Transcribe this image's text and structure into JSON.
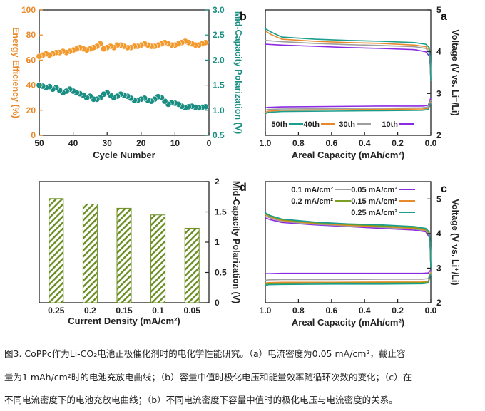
{
  "chart_data": [
    {
      "panel": "a",
      "type": "line",
      "xlabel": "Areal Capacity (mAh/cm²)",
      "ylabel": "Voltage (V vs. Li⁺/Li)",
      "xlim": [
        0,
        1.0
      ],
      "ylim": [
        2,
        5
      ],
      "xticks": [
        "0.0",
        "0.2",
        "0.4",
        "0.6",
        "0.8",
        "1.0"
      ],
      "yticks": [
        "2",
        "3",
        "4",
        "5"
      ],
      "legend_position": "bottom",
      "series": [
        {
          "name": "10th",
          "color": "#8a2be2",
          "charge": {
            "x": [
              0,
              0.004,
              0.01,
              0.03,
              0.1,
              0.3,
              0.5,
              0.7,
              0.9,
              1.0
            ],
            "y": [
              3.3,
              3.7,
              3.9,
              4.0,
              4.05,
              4.08,
              4.1,
              4.13,
              4.16,
              4.18
            ]
          },
          "discharge": {
            "x": [
              0,
              0.015,
              0.05,
              0.3,
              0.6,
              0.9,
              0.98,
              1.0
            ],
            "y": [
              2.9,
              2.72,
              2.7,
              2.7,
              2.69,
              2.68,
              2.67,
              2.66
            ]
          }
        },
        {
          "name": "30th",
          "color": "#9e9e9e",
          "charge": {
            "x": [
              0,
              0.004,
              0.01,
              0.03,
              0.1,
              0.3,
              0.5,
              0.7,
              0.9,
              1.0
            ],
            "y": [
              3.3,
              3.8,
              4.0,
              4.08,
              4.12,
              4.15,
              4.17,
              4.2,
              4.24,
              4.27
            ]
          },
          "discharge": {
            "x": [
              0,
              0.015,
              0.05,
              0.3,
              0.6,
              0.9,
              0.98,
              1.0
            ],
            "y": [
              2.85,
              2.68,
              2.66,
              2.65,
              2.64,
              2.63,
              2.62,
              2.6
            ]
          }
        },
        {
          "name": "40th",
          "color": "#e8892a",
          "charge": {
            "x": [
              0,
              0.004,
              0.01,
              0.03,
              0.1,
              0.3,
              0.5,
              0.7,
              0.9,
              0.97,
              1.0
            ],
            "y": [
              3.3,
              3.85,
              4.05,
              4.12,
              4.16,
              4.2,
              4.22,
              4.25,
              4.3,
              4.42,
              4.5
            ]
          },
          "discharge": {
            "x": [
              0,
              0.015,
              0.05,
              0.3,
              0.6,
              0.9,
              0.98,
              1.0
            ],
            "y": [
              2.8,
              2.65,
              2.63,
              2.62,
              2.61,
              2.6,
              2.58,
              2.55
            ]
          }
        },
        {
          "name": "50th",
          "color": "#1a9e8f",
          "charge": {
            "x": [
              0,
              0.004,
              0.01,
              0.03,
              0.1,
              0.3,
              0.5,
              0.7,
              0.9,
              0.97,
              1.0
            ],
            "y": [
              3.3,
              3.9,
              4.1,
              4.18,
              4.22,
              4.25,
              4.27,
              4.3,
              4.35,
              4.48,
              4.55
            ]
          },
          "discharge": {
            "x": [
              0,
              0.015,
              0.05,
              0.3,
              0.6,
              0.9,
              0.98,
              1.0
            ],
            "y": [
              2.78,
              2.62,
              2.6,
              2.59,
              2.58,
              2.57,
              2.55,
              2.52
            ]
          }
        }
      ]
    },
    {
      "panel": "b",
      "type": "scatter",
      "xlabel": "Cycle Number",
      "ylabel_left": "Energy Efficiency (%)",
      "ylabel_right": "Mid-Capacity Polarization (V)",
      "xlim": [
        0,
        50
      ],
      "ylim_left": [
        0,
        100
      ],
      "ylim_right": [
        0.5,
        3.0
      ],
      "xticks": [
        "0",
        "10",
        "20",
        "30",
        "40",
        "50"
      ],
      "yticks_left": [
        "0",
        "20",
        "40",
        "60",
        "80",
        "100"
      ],
      "yticks_right": [
        "0.5",
        "1.0",
        "1.5",
        "2.0",
        "2.5",
        "3.0"
      ],
      "series": [
        {
          "name": "Energy Efficiency",
          "axis": "left",
          "color": "#f39a2e",
          "x": [
            1,
            2,
            3,
            4,
            5,
            6,
            7,
            8,
            9,
            10,
            11,
            12,
            13,
            14,
            15,
            16,
            17,
            18,
            19,
            20,
            21,
            22,
            23,
            24,
            25,
            26,
            27,
            28,
            29,
            30,
            31,
            32,
            33,
            34,
            35,
            36,
            37,
            38,
            39,
            40,
            41,
            42,
            43,
            44,
            45,
            46,
            47,
            48,
            49,
            50
          ],
          "y": [
            74,
            73,
            72,
            72,
            73,
            74,
            75,
            74,
            73,
            72,
            72,
            73,
            74,
            73,
            72,
            71,
            71,
            72,
            73,
            72,
            71,
            71,
            70,
            70,
            71,
            72,
            72,
            70,
            71,
            70,
            69,
            73,
            71,
            70,
            69,
            68,
            69,
            70,
            69,
            68,
            67,
            66,
            67,
            66,
            66,
            65,
            64,
            65,
            64,
            63
          ]
        },
        {
          "name": "Mid-Capacity Polarization",
          "axis": "right",
          "color": "#1a8e82",
          "x": [
            1,
            2,
            3,
            4,
            5,
            6,
            7,
            8,
            9,
            10,
            11,
            12,
            13,
            14,
            15,
            16,
            17,
            18,
            19,
            20,
            21,
            22,
            23,
            24,
            25,
            26,
            27,
            28,
            29,
            30,
            31,
            32,
            33,
            34,
            35,
            36,
            37,
            38,
            39,
            40,
            41,
            42,
            43,
            44,
            45,
            46,
            47,
            48,
            49,
            50
          ],
          "y": [
            1.07,
            1.06,
            1.05,
            1.06,
            1.08,
            1.07,
            1.05,
            1.08,
            1.12,
            1.14,
            1.15,
            1.12,
            1.18,
            1.25,
            1.27,
            1.22,
            1.18,
            1.2,
            1.24,
            1.22,
            1.2,
            1.2,
            1.24,
            1.28,
            1.3,
            1.32,
            1.28,
            1.25,
            1.3,
            1.35,
            1.32,
            1.25,
            1.22,
            1.22,
            1.28,
            1.25,
            1.3,
            1.33,
            1.35,
            1.38,
            1.42,
            1.38,
            1.35,
            1.4,
            1.45,
            1.42,
            1.47,
            1.45,
            1.48,
            1.5
          ]
        }
      ]
    },
    {
      "panel": "c",
      "type": "line",
      "xlabel": "Areal Capacity (mAh/cm²)",
      "ylabel": "Voltage (V vs. Li⁺/Li)",
      "xlim": [
        0,
        1.0
      ],
      "ylim": [
        2,
        5.5
      ],
      "xticks": [
        "0.0",
        "0.2",
        "0.4",
        "0.6",
        "0.8",
        "1.0"
      ],
      "yticks": [
        "2",
        "3",
        "4",
        "5"
      ],
      "legend_position": "top-right",
      "series": [
        {
          "name": "0.05 mA/cm²",
          "color": "#8a2be2",
          "charge": {
            "x": [
              0,
              0.004,
              0.01,
              0.03,
              0.1,
              0.3,
              0.5,
              0.7,
              0.9,
              0.97,
              1.0
            ],
            "y": [
              3.0,
              3.6,
              3.9,
              4.05,
              4.1,
              4.15,
              4.2,
              4.25,
              4.32,
              4.4,
              4.45
            ]
          },
          "discharge": {
            "x": [
              0,
              0.015,
              0.05,
              0.3,
              0.6,
              0.9,
              0.98,
              1.0
            ],
            "y": [
              2.95,
              2.86,
              2.85,
              2.85,
              2.85,
              2.85,
              2.84,
              2.84
            ]
          }
        },
        {
          "name": "0.1 mA/cm²",
          "color": "#9e9e9e",
          "charge": {
            "x": [
              0,
              0.004,
              0.01,
              0.03,
              0.1,
              0.3,
              0.5,
              0.7,
              0.9,
              0.97,
              1.0
            ],
            "y": [
              3.0,
              3.65,
              3.95,
              4.08,
              4.13,
              4.18,
              4.22,
              4.27,
              4.35,
              4.45,
              4.5
            ]
          },
          "discharge": {
            "x": [
              0,
              0.015,
              0.05,
              0.3,
              0.6,
              0.9,
              0.98,
              1.0
            ],
            "y": [
              2.9,
              2.7,
              2.68,
              2.68,
              2.67,
              2.67,
              2.66,
              2.65
            ]
          }
        },
        {
          "name": "0.15 mA/cm²",
          "color": "#e8892a",
          "charge": {
            "x": [
              0,
              0.004,
              0.01,
              0.03,
              0.1,
              0.3,
              0.5,
              0.7,
              0.9,
              0.97,
              1.0
            ],
            "y": [
              3.0,
              3.7,
              4.0,
              4.1,
              4.15,
              4.2,
              4.24,
              4.29,
              4.38,
              4.48,
              4.55
            ]
          },
          "discharge": {
            "x": [
              0,
              0.015,
              0.05,
              0.3,
              0.6,
              0.9,
              0.98,
              1.0
            ],
            "y": [
              2.88,
              2.62,
              2.6,
              2.6,
              2.59,
              2.59,
              2.58,
              2.57
            ]
          }
        },
        {
          "name": "0.2 mA/cm²",
          "color": "#7a9e20",
          "charge": {
            "x": [
              0,
              0.004,
              0.01,
              0.03,
              0.1,
              0.3,
              0.5,
              0.7,
              0.9,
              0.97,
              1.0
            ],
            "y": [
              3.0,
              3.72,
              4.02,
              4.12,
              4.17,
              4.22,
              4.26,
              4.31,
              4.4,
              4.5,
              4.57
            ]
          },
          "discharge": {
            "x": [
              0,
              0.015,
              0.05,
              0.3,
              0.6,
              0.9,
              0.98,
              1.0
            ],
            "y": [
              2.86,
              2.6,
              2.58,
              2.57,
              2.57,
              2.56,
              2.55,
              2.54
            ]
          }
        },
        {
          "name": "0.25 mA/cm²",
          "color": "#1a9e8f",
          "charge": {
            "x": [
              0,
              0.004,
              0.01,
              0.03,
              0.1,
              0.3,
              0.5,
              0.7,
              0.9,
              0.97,
              1.0
            ],
            "y": [
              3.0,
              3.75,
              4.05,
              4.15,
              4.2,
              4.25,
              4.28,
              4.33,
              4.42,
              4.52,
              4.6
            ]
          },
          "discharge": {
            "x": [
              0,
              0.015,
              0.05,
              0.3,
              0.6,
              0.9,
              0.98,
              1.0
            ],
            "y": [
              2.84,
              2.57,
              2.55,
              2.54,
              2.54,
              2.53,
              2.52,
              2.5
            ]
          }
        }
      ]
    },
    {
      "panel": "d",
      "type": "bar",
      "xlabel": "Current Density (mA/cm²)",
      "ylabel": "Mid-Capacity Polarization (V)",
      "ylim": [
        0,
        2
      ],
      "yticks": [
        "0",
        "0.5",
        "1",
        "1.5",
        "2"
      ],
      "categories": [
        "0.05",
        "0.1",
        "0.15",
        "0.2",
        "0.25"
      ],
      "values": [
        1.23,
        1.45,
        1.56,
        1.63,
        1.72
      ],
      "bar_color": "#6b8e23"
    }
  ],
  "panel_labels": {
    "a": "a",
    "b": "b",
    "c": "c",
    "d": "d"
  },
  "caption": {
    "line1": "图3. CoPPc作为Li-CO₂电池正极催化剂时的电化学性能研究。（a）电流密度为0.05 mA/cm²，截止容",
    "line2": "量为1 mAh/cm²时的电池充放电曲线；（b）容量中值时极化电压和能量效率随循环次数的变化；（c）在",
    "line3": "不同电流密度下的电池充放电曲线；（b）不同电流密度下容量中值时的极化电压与电流密度的关系。"
  }
}
